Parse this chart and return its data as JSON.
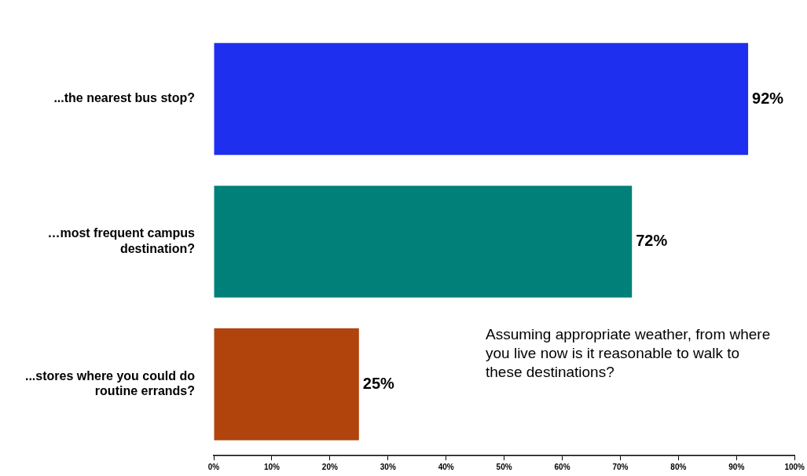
{
  "chart_data": {
    "type": "bar",
    "orientation": "horizontal",
    "categories": [
      "...the nearest bus stop?",
      "…most frequent campus destination?",
      "...stores where you could do routine errands?"
    ],
    "values": [
      92,
      72,
      25
    ],
    "colors": [
      "#1f2ff0",
      "#008078",
      "#b0440c"
    ],
    "value_labels": [
      "92%",
      "72%",
      "25%"
    ],
    "xlim": [
      0,
      100
    ],
    "xticks": [
      {
        "value": 0,
        "label": "0%"
      },
      {
        "value": 10,
        "label": "10%"
      },
      {
        "value": 20,
        "label": "20%"
      },
      {
        "value": 30,
        "label": "30%"
      },
      {
        "value": 40,
        "label": "40%"
      },
      {
        "value": 50,
        "label": "50%"
      },
      {
        "value": 60,
        "label": "60%"
      },
      {
        "value": 70,
        "label": "70%"
      },
      {
        "value": 80,
        "label": "80%"
      },
      {
        "value": 90,
        "label": "90%"
      },
      {
        "value": 100,
        "label": "100%"
      }
    ],
    "annotations": [
      "Assuming appropriate weather, from where you live now is it reasonable to walk to these destinations?"
    ],
    "grid": false,
    "legend": false
  }
}
